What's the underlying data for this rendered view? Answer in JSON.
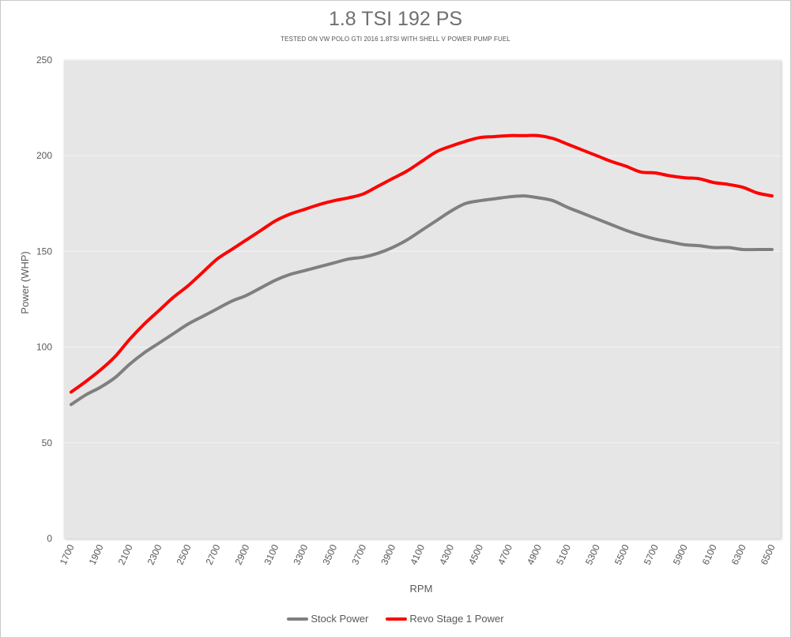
{
  "chart_data": {
    "type": "line",
    "title": "1.8 TSI 192 PS",
    "subtitle": "TESTED ON VW POLO GTI 2016 1.8TSI WITH SHELL V POWER PUMP FUEL",
    "xlabel": "RPM",
    "ylabel": "Power (WHP)",
    "xlim": [
      1700,
      6500
    ],
    "ylim": [
      0,
      250
    ],
    "y_ticks": [
      0,
      50,
      100,
      150,
      200,
      250
    ],
    "x_ticks": [
      1700,
      1900,
      2100,
      2300,
      2500,
      2700,
      2900,
      3100,
      3300,
      3500,
      3700,
      3900,
      4100,
      4300,
      4500,
      4700,
      4900,
      5100,
      5300,
      5500,
      5700,
      5900,
      6100,
      6300,
      6500
    ],
    "x_tick_labels": [
      "1700",
      "1900",
      "2100",
      "2300",
      "2500",
      "2700",
      "2900",
      "3100",
      "3300",
      "3500",
      "3700",
      "3900",
      "4100",
      "4300",
      "4500",
      "4700",
      "4900",
      "5100",
      "5300",
      "5500",
      "5700",
      "5900",
      "6100",
      "6300",
      "6500"
    ],
    "y_tick_labels": [
      "0",
      "50",
      "100",
      "150",
      "200",
      "250"
    ],
    "grid": true,
    "legend_position": "bottom",
    "x": [
      1700,
      1800,
      1900,
      2000,
      2100,
      2200,
      2300,
      2400,
      2500,
      2600,
      2700,
      2800,
      2900,
      3000,
      3100,
      3200,
      3300,
      3400,
      3500,
      3600,
      3700,
      3800,
      3900,
      4000,
      4100,
      4200,
      4300,
      4400,
      4500,
      4600,
      4700,
      4800,
      4900,
      5000,
      5100,
      5200,
      5300,
      5400,
      5500,
      5600,
      5700,
      5800,
      5900,
      6000,
      6100,
      6200,
      6300,
      6400,
      6500
    ],
    "series": [
      {
        "name": "Stock Power",
        "color": "#7f7f7f",
        "values": [
          70,
          75,
          79,
          84,
          91,
          97,
          102,
          107,
          112,
          116,
          120,
          124,
          127,
          131,
          135,
          138,
          140,
          142,
          144,
          146,
          147,
          149,
          152,
          156,
          161,
          166,
          171,
          175,
          176.5,
          177.5,
          178.5,
          179,
          178,
          176.5,
          173,
          170,
          167,
          164,
          161,
          158.5,
          156.5,
          155,
          153.5,
          153,
          152,
          152,
          151,
          151,
          151
        ]
      },
      {
        "name": "Revo Stage 1 Power",
        "color": "#ff0000",
        "values": [
          76.5,
          82,
          88,
          95,
          104,
          112,
          119,
          126,
          132,
          139,
          146,
          151,
          156,
          161,
          166,
          169.5,
          172,
          174.5,
          176.5,
          178,
          180,
          184,
          188,
          192,
          197,
          202,
          205,
          207.5,
          209.5,
          210,
          210.5,
          210.5,
          210.5,
          209,
          206,
          203,
          200,
          197,
          194.5,
          191.5,
          191,
          189.5,
          188.5,
          188,
          186,
          185,
          183.5,
          180.5,
          179
        ]
      }
    ]
  }
}
